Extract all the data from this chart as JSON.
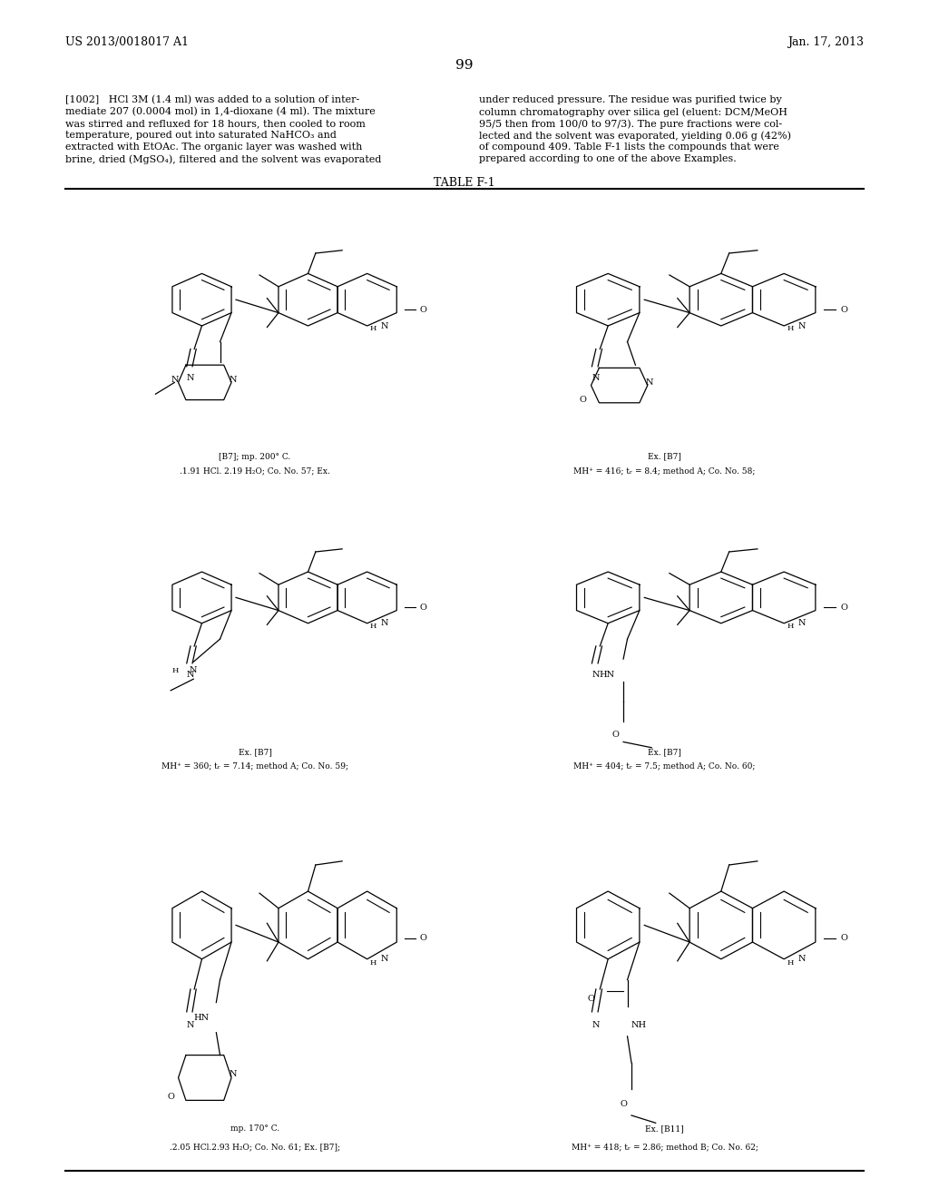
{
  "page_header_left": "US 2013/0018017 A1",
  "page_header_right": "Jan. 17, 2013",
  "page_number": "99",
  "paragraph_text": "[1002]  HCl 3M (1.4 ml) was added to a solution of intermediate 207 (0.0004 mol) in 1,4-dioxane (4 ml). The mixture was stirred and refluxed for 18 hours, then cooled to room temperature, poured out into saturated NaHCO₃ and extracted with EtOAc. The organic layer was washed with brine, dried (MgSO₄), filtered and the solvent was evaporated",
  "paragraph_text2": "under reduced pressure. The residue was purified twice by column chromatography over silica gel (eluent: DCM/MeOH 95/5 then from 100/0 to 97/3). The pure fractions were collected and the solvent was evaporated, yielding 0.06 g (42%) of compound 409. Table F-1 lists the compounds that were prepared according to one of the above Examples.",
  "table_title": "TABLE F-1",
  "compound_labels": [
    ".1.91 HCl. 2.19 H₂O; Co. No. 57; Ex.\n[B7]; mp. 200° C.",
    "MH⁺ = 416; tᵣ = 8.4; method A; Co. No. 58;\nEx. [B7]",
    "MH⁺ = 360; tᵣ = 7.14; method A; Co. No. 59;\nEx. [B7]",
    "MH⁺ = 404; tᵣ = 7.5; method A; Co. No. 60;\nEx. [B7]",
    ".2.05 HCl.2.93 H₂O; Co. No. 61; Ex. [B7];\nmp. 170° C.",
    "MH⁺ = 418; tᵣ = 2.86; method B; Co. No. 62;\nEx. [B11]"
  ],
  "bg_color": "#ffffff",
  "text_color": "#000000",
  "font_size_header": 9,
  "font_size_body": 8,
  "font_size_table_title": 9,
  "font_size_label": 7.5
}
